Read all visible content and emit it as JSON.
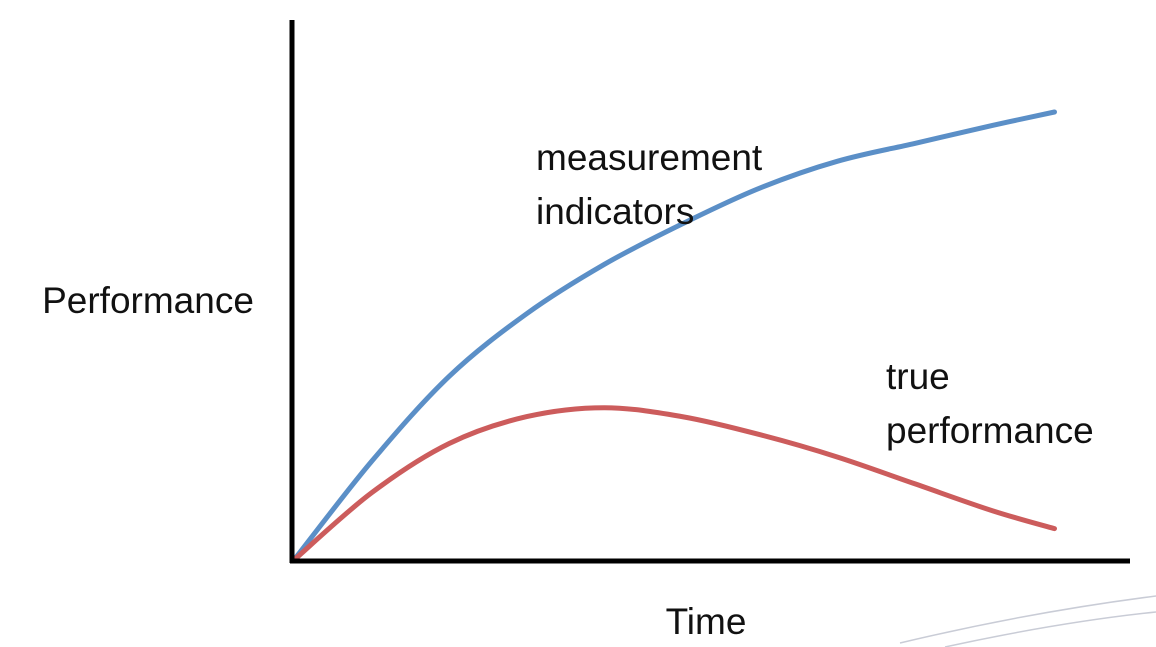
{
  "chart_data": {
    "type": "line",
    "title": "",
    "xlabel": "Time",
    "ylabel": "Performance",
    "xlim": [
      0,
      1
    ],
    "ylim": [
      0,
      1
    ],
    "grid": false,
    "legend": "none",
    "series": [
      {
        "name": "measurement indicators",
        "label_lines": [
          "measurement",
          "indicators"
        ],
        "color": "#5b8fc7",
        "x": [
          0,
          0.1,
          0.2,
          0.3,
          0.4,
          0.5,
          0.6,
          0.7,
          0.8,
          0.9,
          0.98
        ],
        "y": [
          0,
          0.22,
          0.41,
          0.55,
          0.66,
          0.75,
          0.83,
          0.89,
          0.93,
          0.97,
          1.0
        ]
      },
      {
        "name": "true performance",
        "label_lines": [
          "true",
          "performance"
        ],
        "color": "#cc5c5c",
        "x": [
          0,
          0.1,
          0.2,
          0.3,
          0.4,
          0.5,
          0.6,
          0.7,
          0.8,
          0.9,
          0.98
        ],
        "y": [
          0,
          0.15,
          0.26,
          0.32,
          0.34,
          0.32,
          0.28,
          0.23,
          0.17,
          0.11,
          0.07
        ]
      }
    ]
  }
}
